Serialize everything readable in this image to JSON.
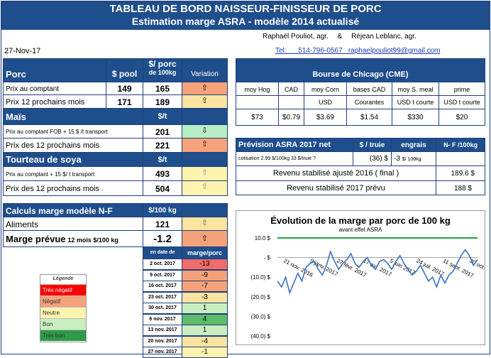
{
  "header": {
    "title_line1": "TABLEAU DE BORD NAISSEUR-FINISSEUR DE PORC",
    "title_line2": "Estimation marge ASRA - modèle 2014 actualisé",
    "authors": "Raphaël Pouliot, agr.",
    "amp": "&",
    "authors2": "Réjean Leblanc, agr.",
    "contact": "Tel:      514-796-0567   raphaelpouliot99@gmail.com",
    "date": "27-Nov-17"
  },
  "porc": {
    "title": "Porc",
    "col_pool": "$ pool",
    "col_per": "$/ porc",
    "col_per2": "de 100kg",
    "col_var": "Variation",
    "rows": [
      {
        "label": "Prix au comptant",
        "pool": "149",
        "per": "165",
        "var": "⇧",
        "color": "#f5a27a"
      },
      {
        "label": "Prix 12 prochains mois",
        "pool": "171",
        "per": "189",
        "var": "⇧",
        "color": "#fbe3a0"
      }
    ]
  },
  "mais": {
    "title": "Maïs",
    "unit": "$/t",
    "rows": [
      {
        "label": "Prix au comptant  FOB + 15 $ /t transport",
        "value": "201",
        "var": "⇩",
        "color": "#b7eec4"
      },
      {
        "label": "Prix des 12 prochains mois",
        "value": "221",
        "var": "⇧",
        "color": "#f5a27a"
      }
    ]
  },
  "soya": {
    "title": "Tourteau de soya",
    "unit": "$/t",
    "rows": [
      {
        "label": "Prix au comptant  + 15 $/ t  transport",
        "value": "493",
        "var": "⇧",
        "color": "#fff3b0"
      },
      {
        "label": "Prix des 12 prochains mois",
        "value": "504",
        "var": "⇧",
        "color": "#fff3b0"
      }
    ]
  },
  "calc": {
    "title": "Calculs marge  modèle N-F",
    "unit": "$/100 kg",
    "aliments_label": "Aliments",
    "aliments_value": "121",
    "aliments_var": "⇧",
    "marge_label": "Marge prévue",
    "marge_sub": "12 mois  $/100 kg",
    "marge_value": "-1.2",
    "marge_var": "⇧",
    "col_date": "en date de",
    "col_marge": "marge/porc"
  },
  "history": [
    {
      "date": "2 oct. 2017",
      "value": "-13",
      "color": "#f26b6b"
    },
    {
      "date": "9 oct. 2017",
      "value": "-9",
      "color": "#f5a27a"
    },
    {
      "date": "16 oct. 2017",
      "value": "-7",
      "color": "#f5a27a"
    },
    {
      "date": "23 oct. 2017",
      "value": "-3",
      "color": "#fbe3a0"
    },
    {
      "date": "30 oct. 2017",
      "value": "1",
      "color": "#c9eec0"
    },
    {
      "date": "6 nov. 2017",
      "value": "4",
      "color": "#5dbb6b"
    },
    {
      "date": "13 nov. 2017",
      "value": "1",
      "color": "#c9eec0"
    },
    {
      "date": "20 nov. 2017",
      "value": "-4",
      "color": "#fbe3a0"
    },
    {
      "date": "27 nov. 2017",
      "value": "-1",
      "color": "#fff3b0"
    }
  ],
  "legend": {
    "title": "Légende",
    "items": [
      {
        "label": "Très négatif",
        "color": "#ff0000"
      },
      {
        "label": "Négatif",
        "color": "#f5a27a"
      },
      {
        "label": "Neutre",
        "color": "#fff3b0"
      },
      {
        "label": "Bon",
        "color": "#c9eec0"
      },
      {
        "label": "Très bon",
        "color": "#2e9a48"
      }
    ]
  },
  "cme": {
    "title": "Bourse de Chicago (CME)",
    "headers": [
      "moy Hog",
      "CAD",
      "moy Corn",
      "bases CAD",
      "moy S. meal",
      "prime"
    ],
    "units": [
      "",
      "",
      "USD",
      "Courantes",
      "USD t courte",
      "USD t courte"
    ],
    "values": [
      "$73",
      "$0.79",
      "$3.69",
      "$1.54",
      "$330",
      "$20"
    ]
  },
  "asra": {
    "title": "Prévision ASRA 2017 net",
    "col_truie": "$ / truie",
    "col_engrais": "engrais",
    "col_nf": "N- F /100kg",
    "cotisation_label": "cotisation 2.99 $/100kg  33 $/truie ?",
    "cotisation_truie": "(36) $",
    "cotisation_engrais": "-3",
    "cotisation_engrais_unit": "$/ 100kg",
    "row1_label": "Revenu stabilisé ajusté 2016 ( final )",
    "row1_value": "189.6 $",
    "row2_label": "Revenu stabilisé 2017 prévu",
    "row2_value": "188 $"
  },
  "chart_data": {
    "type": "line",
    "title": "Évolution de la marge par porc de 100 kg",
    "subtitle": "avant effet ASRA",
    "yticks": [
      "10.0 $",
      "-  $",
      "(10.0) $",
      "(20.0) $",
      "(30.0) $",
      "(40.0) $"
    ],
    "ylim": [
      -40,
      10
    ],
    "xticks": [
      "21 nov. 2016",
      "9 janv. 2017",
      "27 févr. 2017",
      "17 avr. 2017",
      "5 juin 2017",
      "24 juil. 2017",
      "11 sept. 2017",
      "30 oct. 2017"
    ],
    "reference_line": 10,
    "series": [
      {
        "values": [
          -12,
          -15,
          -10,
          -18,
          -13,
          -8,
          -12,
          -5,
          -3,
          -2,
          -6,
          -9,
          -4,
          3,
          -2,
          -6,
          -3,
          -1,
          2,
          -3,
          -5,
          -2,
          0,
          -4,
          -6,
          -2,
          -1,
          -3,
          -6,
          -2,
          1,
          -3,
          -6,
          -9,
          -7,
          -4,
          -8,
          -12,
          -10,
          -15,
          -9,
          -13,
          -9,
          -7,
          -3,
          1,
          4,
          1,
          -4,
          -1
        ]
      }
    ]
  }
}
